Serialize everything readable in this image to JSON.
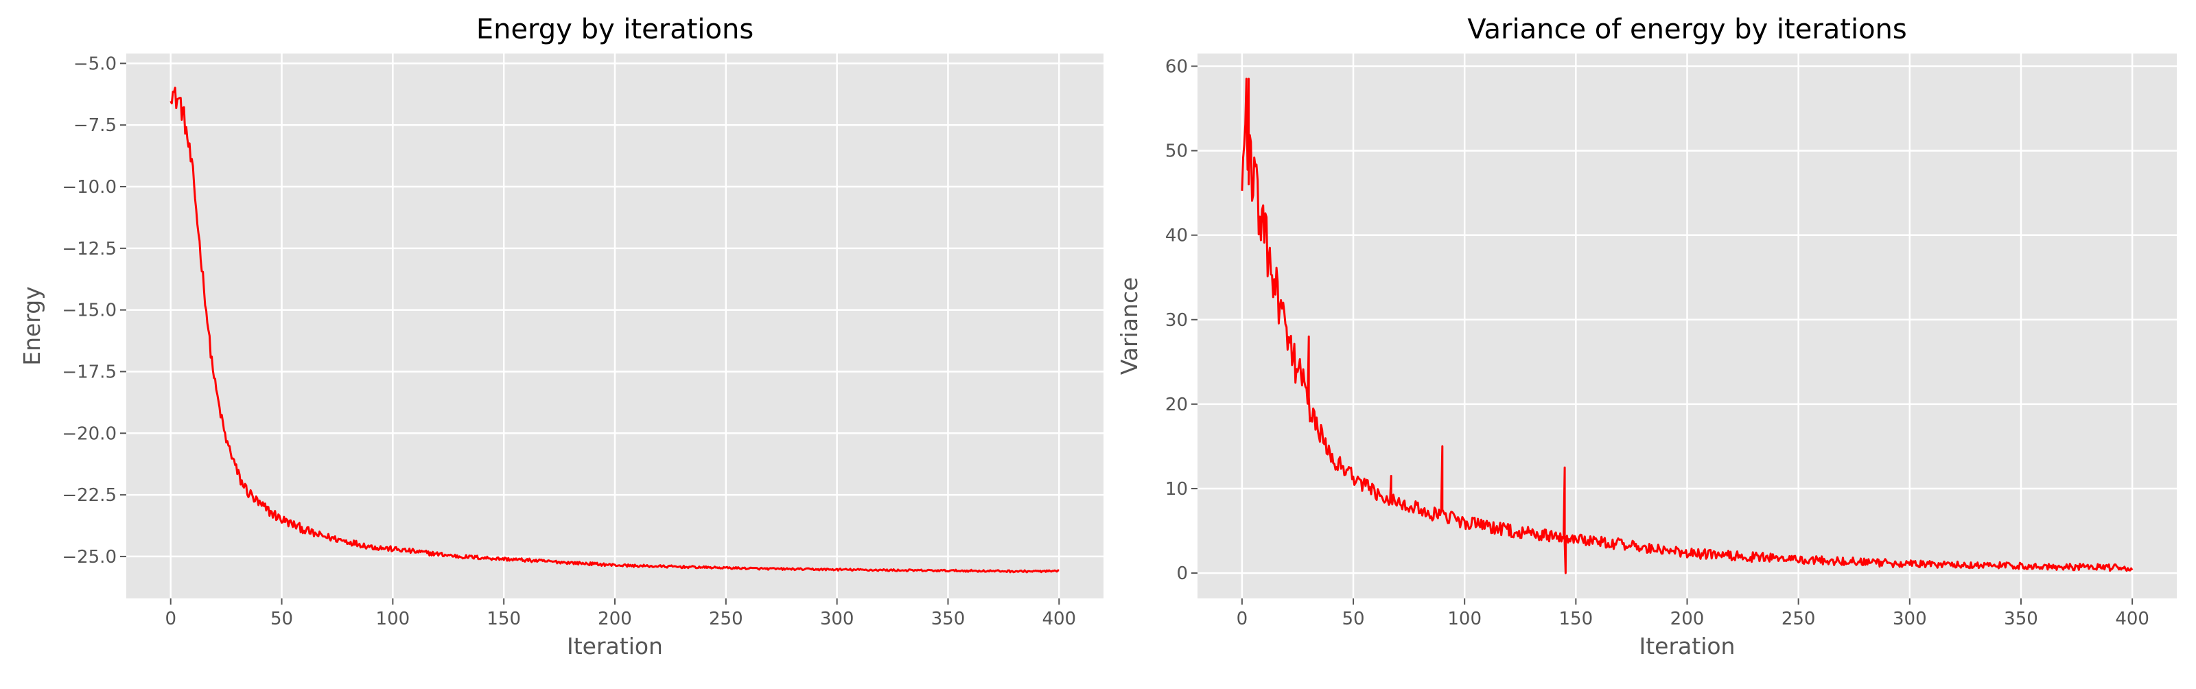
{
  "chart_data": [
    {
      "type": "line",
      "title": "Energy by iterations",
      "xlabel": "Iteration",
      "ylabel": "Energy",
      "xlim": [
        -20,
        420
      ],
      "ylim": [
        -26.7,
        -4.6
      ],
      "xticks": [
        0,
        50,
        100,
        150,
        200,
        250,
        300,
        350,
        400
      ],
      "xtick_labels": [
        "0",
        "50",
        "100",
        "150",
        "200",
        "250",
        "300",
        "350",
        "400"
      ],
      "yticks": [
        -5.0,
        -7.5,
        -10.0,
        -12.5,
        -15.0,
        -17.5,
        -20.0,
        -22.5,
        -25.0
      ],
      "ytick_labels": [
        "−5.0",
        "−7.5",
        "−10.0",
        "−12.5",
        "−15.0",
        "−17.5",
        "−20.0",
        "−22.5",
        "−25.0"
      ],
      "grid": true,
      "series": [
        {
          "color": "#ff0000",
          "x": [
            0,
            2,
            4,
            6,
            8,
            10,
            12,
            14,
            16,
            18,
            20,
            22,
            25,
            28,
            30,
            32,
            35,
            38,
            40,
            45,
            50,
            55,
            60,
            65,
            70,
            75,
            80,
            90,
            100,
            110,
            120,
            130,
            140,
            150,
            160,
            170,
            180,
            190,
            200,
            210,
            220,
            230,
            240,
            250,
            260,
            270,
            280,
            290,
            300,
            320,
            340,
            360,
            380,
            400
          ],
          "y": [
            -6.0,
            -6.4,
            -6.5,
            -7.2,
            -8.3,
            -9.5,
            -11.4,
            -13.2,
            -15.0,
            -16.7,
            -18.0,
            -19.0,
            -20.3,
            -21.0,
            -21.6,
            -22.0,
            -22.4,
            -22.7,
            -22.9,
            -23.2,
            -23.5,
            -23.7,
            -23.9,
            -24.1,
            -24.2,
            -24.3,
            -24.4,
            -24.6,
            -24.7,
            -24.8,
            -24.9,
            -25.0,
            -25.05,
            -25.1,
            -25.15,
            -25.2,
            -25.25,
            -25.3,
            -25.35,
            -25.38,
            -25.4,
            -25.42,
            -25.44,
            -25.46,
            -25.48,
            -25.5,
            -25.51,
            -25.52,
            -25.53,
            -25.55,
            -25.57,
            -25.58,
            -25.6,
            -25.6
          ],
          "noise": [
            0.55,
            0.5,
            0.5,
            0.45,
            0.4,
            0.35,
            0.3,
            0.28,
            0.26,
            0.24,
            0.22,
            0.2,
            0.22,
            0.25,
            0.25,
            0.25,
            0.25,
            0.25,
            0.25,
            0.22,
            0.2,
            0.18,
            0.18,
            0.16,
            0.15,
            0.14,
            0.13,
            0.12,
            0.11,
            0.1,
            0.09,
            0.08,
            0.08,
            0.07,
            0.07,
            0.06,
            0.06,
            0.06,
            0.05,
            0.05,
            0.05,
            0.05,
            0.04,
            0.04,
            0.04,
            0.04,
            0.04,
            0.04,
            0.04,
            0.04,
            0.04,
            0.04,
            0.04,
            0.04
          ]
        }
      ]
    },
    {
      "type": "line",
      "title": "Variance of energy by iterations",
      "xlabel": "Iteration",
      "ylabel": "Variance",
      "xlim": [
        -20,
        420
      ],
      "ylim": [
        -3,
        61.5
      ],
      "xticks": [
        0,
        50,
        100,
        150,
        200,
        250,
        300,
        350,
        400
      ],
      "xtick_labels": [
        "0",
        "50",
        "100",
        "150",
        "200",
        "250",
        "300",
        "350",
        "400"
      ],
      "yticks": [
        0,
        10,
        20,
        30,
        40,
        50,
        60
      ],
      "ytick_labels": [
        "0",
        "10",
        "20",
        "30",
        "40",
        "50",
        "60"
      ],
      "grid": true,
      "series": [
        {
          "color": "#ff0000",
          "x": [
            0,
            1,
            2,
            3,
            4,
            6,
            8,
            10,
            12,
            15,
            18,
            20,
            22,
            25,
            28,
            30,
            32,
            35,
            38,
            40,
            45,
            50,
            55,
            60,
            65,
            70,
            75,
            80,
            85,
            90,
            95,
            100,
            110,
            120,
            130,
            140,
            145,
            150,
            160,
            170,
            180,
            190,
            200,
            210,
            220,
            230,
            240,
            250,
            260,
            270,
            280,
            290,
            300,
            320,
            340,
            360,
            380,
            400
          ],
          "y": [
            46,
            50,
            54,
            50,
            48,
            45,
            43,
            40,
            37,
            34,
            30,
            28,
            26,
            24,
            22,
            20,
            18,
            16.5,
            15,
            14,
            12.5,
            11.5,
            10.5,
            9.5,
            9,
            8.5,
            8,
            7.5,
            7,
            6.8,
            6.4,
            6,
            5.5,
            5,
            4.6,
            4.4,
            4.3,
            4.1,
            3.8,
            3.4,
            3,
            2.7,
            2.4,
            2.2,
            2,
            1.9,
            1.8,
            1.6,
            1.5,
            1.4,
            1.3,
            1.2,
            1.1,
            1.0,
            0.9,
            0.8,
            0.7,
            0.6
          ],
          "noise": [
            4,
            5,
            5,
            5,
            5,
            4.5,
            4,
            4,
            3.5,
            3,
            2.8,
            2.5,
            2.3,
            2.2,
            2,
            1.8,
            1.6,
            1.4,
            1.3,
            1.2,
            1.1,
            1,
            1,
            0.9,
            0.9,
            0.8,
            0.8,
            0.8,
            0.8,
            0.8,
            0.8,
            0.8,
            0.8,
            0.8,
            0.8,
            0.8,
            0.8,
            0.7,
            0.7,
            0.7,
            0.7,
            0.6,
            0.6,
            0.6,
            0.6,
            0.6,
            0.5,
            0.5,
            0.5,
            0.5,
            0.5,
            0.5,
            0.4,
            0.4,
            0.4,
            0.4,
            0.4,
            0.4
          ],
          "spikes": [
            {
              "x": 2,
              "y": 58.5
            },
            {
              "x": 3,
              "y": 58.5
            },
            {
              "x": 30,
              "y": 28
            },
            {
              "x": 67,
              "y": 11.5
            },
            {
              "x": 90,
              "y": 15
            },
            {
              "x": 145,
              "y": 12.5
            },
            {
              "x": 145.4,
              "y": 0
            }
          ]
        }
      ]
    }
  ]
}
